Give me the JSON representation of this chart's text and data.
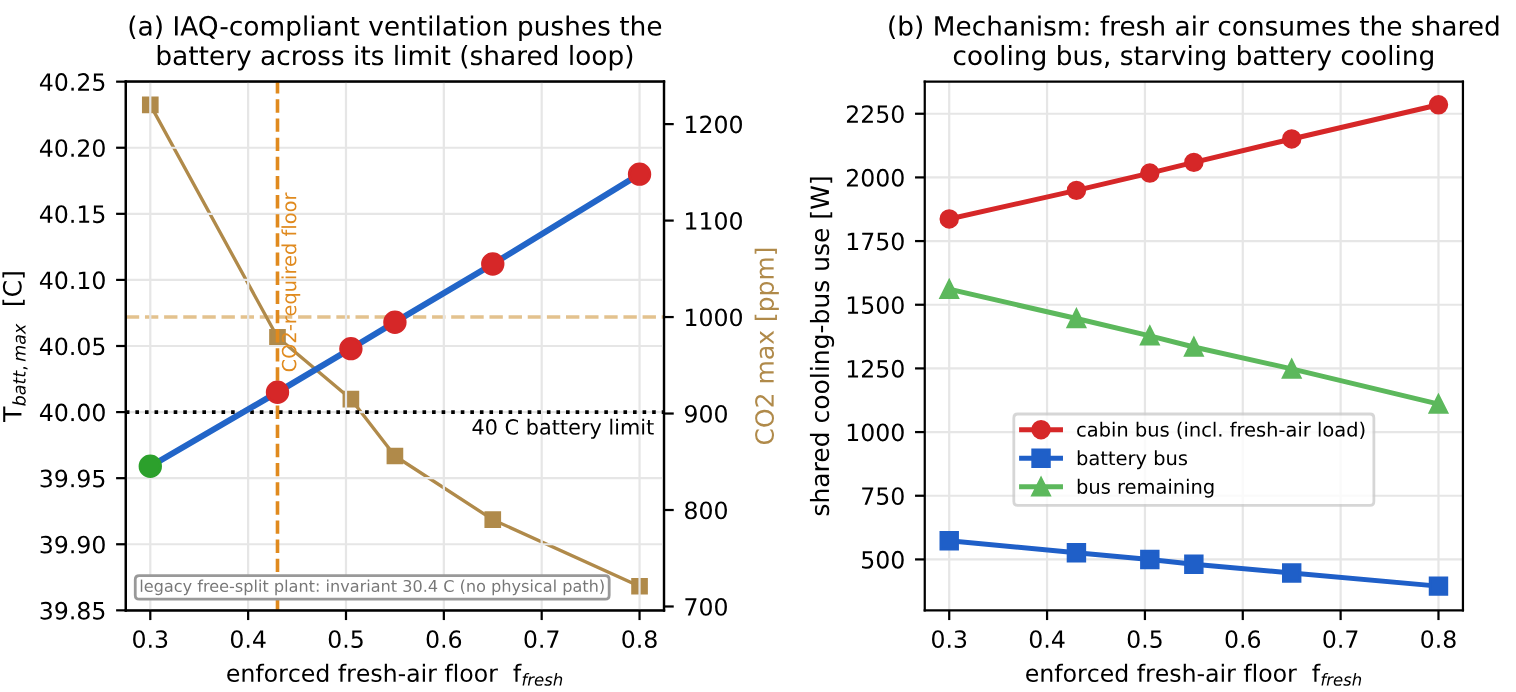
{
  "chart_data": [
    {
      "type": "line",
      "title": "(a) IAQ-compliant ventilation pushes the\nbattery across its limit (shared loop)",
      "xlabel": "enforced fresh-air floor  f$_{fresh}$",
      "ylabel": "T$_{batt,max}$  [C]",
      "y2label": "CO2 max [ppm]",
      "x": [
        0.3,
        0.43,
        0.505,
        0.55,
        0.65,
        0.8
      ],
      "series": [
        {
          "color": "#2265c8",
          "colors": [
            "#2ca02c",
            "#d62728",
            "#d62728",
            "#d62728",
            "#d62728",
            "#d62728"
          ],
          "values": [
            39.959,
            40.015,
            40.048,
            40.068,
            40.112,
            40.18
          ],
          "marker": "circle"
        },
        {
          "color": "#b08a4a",
          "axis": "y2",
          "values": [
            1220,
            979,
            915,
            856,
            790,
            721
          ],
          "marker": "square"
        }
      ],
      "xlim": [
        0.275,
        0.825
      ],
      "xticks": [
        0.3,
        0.4,
        0.5,
        0.6,
        0.7,
        0.8
      ],
      "ylim": [
        39.85,
        40.25
      ],
      "yticks": [
        {
          "value": 39.85,
          "label": "39.85"
        },
        {
          "value": 39.9,
          "label": "39.90"
        },
        {
          "value": 39.95,
          "label": "39.95"
        },
        {
          "value": 40.0,
          "label": "40.00"
        },
        {
          "value": 40.05,
          "label": "40.05"
        },
        {
          "value": 40.1,
          "label": "40.10"
        },
        {
          "value": 40.15,
          "label": "40.15"
        },
        {
          "value": 40.2,
          "label": "40.20"
        },
        {
          "value": 40.25,
          "label": "40.25"
        }
      ],
      "y2lim": [
        696,
        1244
      ],
      "y2ticks": [
        700,
        800,
        900,
        1000,
        1100,
        1200
      ],
      "ref_lines": [
        {
          "axis": "y",
          "value": 40,
          "label": "40 C battery limit",
          "color": "#000000",
          "line_style": "dotted"
        },
        {
          "axis": "x",
          "value": 0.43,
          "label": "CO2-required floor",
          "color": "#e08a1e",
          "line_style": "dashed"
        },
        {
          "axis": "y2",
          "value": 1000,
          "color": "#e3c28e",
          "line_style": "dashed"
        }
      ],
      "annotations": [
        "legacy free-split plant: invariant 30.4 C (no physical path)"
      ],
      "grid": true
    },
    {
      "type": "line",
      "title": "(b) Mechanism: fresh air consumes the shared\ncooling bus, starving battery cooling",
      "xlabel": "enforced fresh-air floor  f$_{fresh}$",
      "ylabel": "shared cooling-bus use [W]",
      "x": [
        0.3,
        0.43,
        0.505,
        0.55,
        0.65,
        0.8
      ],
      "series": [
        {
          "name": "cabin bus (incl. fresh-air load)",
          "color": "#d62728",
          "values": [
            1837,
            1949,
            2017,
            2059,
            2151,
            2285
          ],
          "marker": "circle"
        },
        {
          "name": "battery bus",
          "color": "#1f5fc8",
          "values": [
            573,
            526,
            500,
            481,
            447,
            395
          ],
          "marker": "square"
        },
        {
          "name": "bus remaining",
          "color": "#5cb85c",
          "values": [
            1561,
            1446,
            1378,
            1334,
            1248,
            1110
          ],
          "marker": "triangle"
        }
      ],
      "xlim": [
        0.275,
        0.825
      ],
      "xticks": [
        0.3,
        0.4,
        0.5,
        0.6,
        0.7,
        0.8
      ],
      "ylim": [
        300,
        2376
      ],
      "yticks": [
        500,
        750,
        1000,
        1250,
        1500,
        1750,
        2000,
        2250
      ],
      "legend": "lower center",
      "grid": true
    }
  ]
}
